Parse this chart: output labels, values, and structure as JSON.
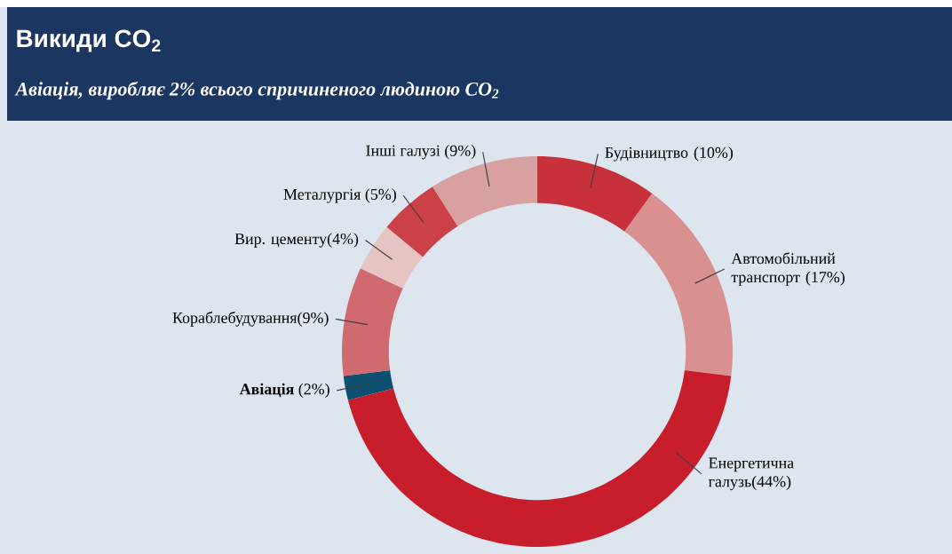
{
  "chart_data": {
    "type": "donut",
    "title": "Викиди CO$_{2}$",
    "subtitle": "Авіація, виробляє 2% всього спричиненого людиною CO$_{2}$",
    "categories": [
      "Будівництво (10%)",
      "Автомобільний транспорт (17%)",
      "Енергетична галузь(44%)",
      "**Авіація** (2%)",
      "Кораблебудування(9%)",
      "Вир. цементу(4%)",
      "Металургія (5%)",
      "Інші галузі (9%)"
    ],
    "values": [
      10,
      17,
      44,
      2,
      9,
      4,
      5,
      9
    ],
    "colors": [
      "#c8313c",
      "#d99090",
      "#c81e2c",
      "#0d4f6e",
      "#d06a6e",
      "#e6c4c4",
      "#cc4048",
      "#d9a0a0"
    ]
  }
}
